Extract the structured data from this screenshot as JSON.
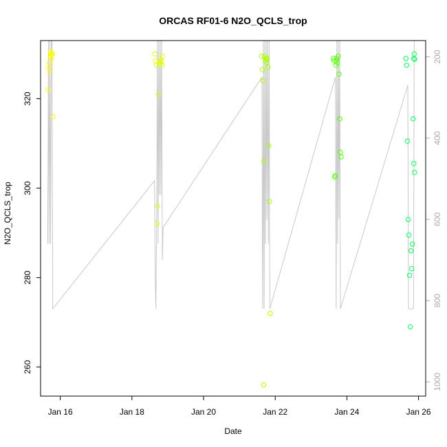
{
  "chart_data": {
    "type": "scatter",
    "title": "ORCAS RF01-6 N2O_QCLS_trop",
    "xlabel": "Date",
    "ylabel": "N2O_QCLS_trop",
    "xlim": [
      15.45,
      26.2
    ],
    "ylim": [
      253.5,
      333.0
    ],
    "x_ticks": [
      {
        "value": 16,
        "label": "Jan 16"
      },
      {
        "value": 18,
        "label": "Jan 18"
      },
      {
        "value": 20,
        "label": "Jan 20"
      },
      {
        "value": 22,
        "label": "Jan 22"
      },
      {
        "value": 24,
        "label": "Jan 24"
      },
      {
        "value": 26,
        "label": "Jan 26"
      }
    ],
    "y_ticks": [
      260,
      280,
      300,
      320
    ],
    "y2_axis": {
      "lim": [
        1035,
        160
      ],
      "ticks": [
        200,
        400,
        600,
        800,
        1000
      ],
      "color": "#aaaaaa"
    },
    "grid": false,
    "trace_color": "#c8c8c8",
    "trace_y2": [
      {
        "x": 15.65,
        "y2": 660
      },
      {
        "x": 15.67,
        "y2": 150
      },
      {
        "x": 15.69,
        "y2": 660
      },
      {
        "x": 15.71,
        "y2": 150
      },
      {
        "x": 15.73,
        "y2": 660
      },
      {
        "x": 15.75,
        "y2": 150
      },
      {
        "x": 15.77,
        "y2": 150
      },
      {
        "x": 15.79,
        "y2": 820
      },
      {
        "x": 18.63,
        "y2": 505
      },
      {
        "x": 18.65,
        "y2": 745
      },
      {
        "x": 18.67,
        "y2": 820
      },
      {
        "x": 18.69,
        "y2": 600
      },
      {
        "x": 18.71,
        "y2": 150
      },
      {
        "x": 18.73,
        "y2": 660
      },
      {
        "x": 18.75,
        "y2": 150
      },
      {
        "x": 18.77,
        "y2": 540
      },
      {
        "x": 18.79,
        "y2": 150
      },
      {
        "x": 18.81,
        "y2": 540
      },
      {
        "x": 18.83,
        "y2": 150
      },
      {
        "x": 18.85,
        "y2": 700
      },
      {
        "x": 18.87,
        "y2": 620
      },
      {
        "x": 21.63,
        "y2": 250
      },
      {
        "x": 21.64,
        "y2": 660
      },
      {
        "x": 21.65,
        "y2": 820
      },
      {
        "x": 21.67,
        "y2": 150
      },
      {
        "x": 21.69,
        "y2": 820
      },
      {
        "x": 21.71,
        "y2": 150
      },
      {
        "x": 21.73,
        "y2": 660
      },
      {
        "x": 21.75,
        "y2": 150
      },
      {
        "x": 21.77,
        "y2": 600
      },
      {
        "x": 21.79,
        "y2": 150
      },
      {
        "x": 21.81,
        "y2": 660
      },
      {
        "x": 21.83,
        "y2": 150
      },
      {
        "x": 21.85,
        "y2": 820
      },
      {
        "x": 23.68,
        "y2": 250
      },
      {
        "x": 23.7,
        "y2": 820
      },
      {
        "x": 23.72,
        "y2": 150
      },
      {
        "x": 23.74,
        "y2": 660
      },
      {
        "x": 23.76,
        "y2": 150
      },
      {
        "x": 23.78,
        "y2": 600
      },
      {
        "x": 23.8,
        "y2": 150
      },
      {
        "x": 23.82,
        "y2": 820
      },
      {
        "x": 25.7,
        "y2": 270
      },
      {
        "x": 25.72,
        "y2": 820
      },
      {
        "x": 25.86,
        "y2": 820
      },
      {
        "x": 25.88,
        "y2": 150
      }
    ],
    "points": [
      {
        "x": 15.66,
        "y": 322,
        "c": "#ffff00"
      },
      {
        "x": 15.68,
        "y": 327,
        "c": "#ffff00"
      },
      {
        "x": 15.7,
        "y": 328,
        "c": "#ffff00"
      },
      {
        "x": 15.72,
        "y": 329.5,
        "c": "#ffff00"
      },
      {
        "x": 15.74,
        "y": 330,
        "c": "#ffff00"
      },
      {
        "x": 15.76,
        "y": 329,
        "c": "#ffff00"
      },
      {
        "x": 15.78,
        "y": 330,
        "c": "#ffff00"
      },
      {
        "x": 15.8,
        "y": 316,
        "c": "#ffff00"
      },
      {
        "x": 15.71,
        "y": 326,
        "c": "#ffff00"
      },
      {
        "x": 15.73,
        "y": 330.5,
        "c": "#ffff00"
      },
      {
        "x": 15.75,
        "y": 329.8,
        "c": "#ffff00"
      },
      {
        "x": 15.77,
        "y": 330.2,
        "c": "#ffff00"
      },
      {
        "x": 18.64,
        "y": 330,
        "c": "#e6ff00"
      },
      {
        "x": 18.66,
        "y": 328.5,
        "c": "#e6ff00"
      },
      {
        "x": 18.68,
        "y": 327.5,
        "c": "#e6ff00"
      },
      {
        "x": 18.7,
        "y": 292,
        "c": "#e6ff00"
      },
      {
        "x": 18.72,
        "y": 296,
        "c": "#e6ff00"
      },
      {
        "x": 18.74,
        "y": 321,
        "c": "#e6ff00"
      },
      {
        "x": 18.76,
        "y": 328,
        "c": "#e6ff00"
      },
      {
        "x": 18.78,
        "y": 328.5,
        "c": "#e6ff00"
      },
      {
        "x": 18.8,
        "y": 328,
        "c": "#e6ff00"
      },
      {
        "x": 18.82,
        "y": 328.5,
        "c": "#e6ff00"
      },
      {
        "x": 18.84,
        "y": 327.5,
        "c": "#e6ff00"
      },
      {
        "x": 18.86,
        "y": 329.5,
        "c": "#e6ff00"
      },
      {
        "x": 21.62,
        "y": 329.5,
        "c": "#aaff00"
      },
      {
        "x": 21.64,
        "y": 326.5,
        "c": "#aaff00"
      },
      {
        "x": 21.66,
        "y": 324,
        "c": "#aaff00"
      },
      {
        "x": 21.68,
        "y": 306,
        "c": "#aaff00"
      },
      {
        "x": 21.7,
        "y": 329.5,
        "c": "#aaff00"
      },
      {
        "x": 21.72,
        "y": 328.5,
        "c": "#aaff00"
      },
      {
        "x": 21.74,
        "y": 329,
        "c": "#aaff00"
      },
      {
        "x": 21.76,
        "y": 328,
        "c": "#aaff00"
      },
      {
        "x": 21.78,
        "y": 329,
        "c": "#aaff00"
      },
      {
        "x": 21.8,
        "y": 327,
        "c": "#aaff00"
      },
      {
        "x": 21.82,
        "y": 309.5,
        "c": "#aaff00"
      },
      {
        "x": 21.84,
        "y": 297,
        "c": "#aaff00"
      },
      {
        "x": 21.86,
        "y": 272,
        "c": "#aaff00"
      },
      {
        "x": 21.68,
        "y": 256,
        "c": "#aaff00"
      },
      {
        "x": 21.76,
        "y": 328.8,
        "c": "#aaff00"
      },
      {
        "x": 23.62,
        "y": 329,
        "c": "#55ff00"
      },
      {
        "x": 23.64,
        "y": 328.5,
        "c": "#55ff00"
      },
      {
        "x": 23.66,
        "y": 302.5,
        "c": "#55ff00"
      },
      {
        "x": 23.68,
        "y": 302.8,
        "c": "#55ff00"
      },
      {
        "x": 23.7,
        "y": 327.5,
        "c": "#55ff00"
      },
      {
        "x": 23.72,
        "y": 329,
        "c": "#55ff00"
      },
      {
        "x": 23.74,
        "y": 328,
        "c": "#55ff00"
      },
      {
        "x": 23.76,
        "y": 329.5,
        "c": "#55ff00"
      },
      {
        "x": 23.78,
        "y": 325.5,
        "c": "#55ff00"
      },
      {
        "x": 23.8,
        "y": 315.5,
        "c": "#55ff00"
      },
      {
        "x": 23.82,
        "y": 308,
        "c": "#55ff00"
      },
      {
        "x": 23.84,
        "y": 307,
        "c": "#55ff00"
      },
      {
        "x": 23.7,
        "y": 328.5,
        "c": "#55ff00"
      },
      {
        "x": 25.65,
        "y": 329,
        "c": "#00ff55"
      },
      {
        "x": 25.67,
        "y": 327.5,
        "c": "#00ff55"
      },
      {
        "x": 25.69,
        "y": 310.5,
        "c": "#00ff55"
      },
      {
        "x": 25.71,
        "y": 293,
        "c": "#00ff55"
      },
      {
        "x": 25.73,
        "y": 289.5,
        "c": "#00ff55"
      },
      {
        "x": 25.75,
        "y": 280.5,
        "c": "#00ff55"
      },
      {
        "x": 25.77,
        "y": 269,
        "c": "#00ff55"
      },
      {
        "x": 25.79,
        "y": 286,
        "c": "#00ff55"
      },
      {
        "x": 25.81,
        "y": 282,
        "c": "#00ff55"
      },
      {
        "x": 25.83,
        "y": 287.5,
        "c": "#00ff55"
      },
      {
        "x": 25.85,
        "y": 315.5,
        "c": "#00ff55"
      },
      {
        "x": 25.87,
        "y": 305.5,
        "c": "#00ff55"
      },
      {
        "x": 25.89,
        "y": 303.5,
        "c": "#00ff55"
      },
      {
        "x": 25.87,
        "y": 329,
        "c": "#00ff55"
      },
      {
        "x": 25.88,
        "y": 330,
        "c": "#00ff55"
      },
      {
        "x": 25.89,
        "y": 328.8,
        "c": "#00ff55"
      }
    ]
  }
}
